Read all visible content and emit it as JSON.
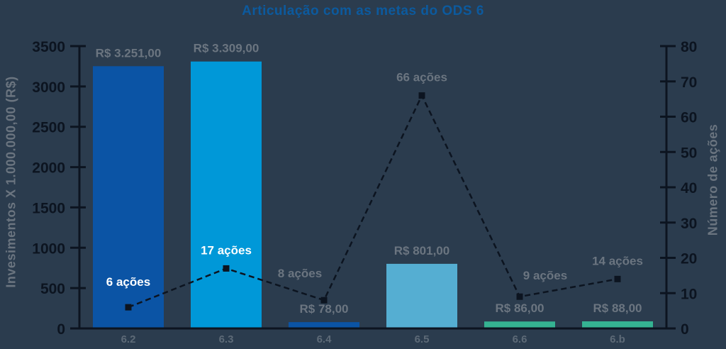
{
  "chart": {
    "title": "Articulação com as metas do ODS 6",
    "left_axis_title": "Invesimentos X 1.000.000,00 (R$)",
    "right_axis_title": "Número de ações"
  },
  "chart_data": {
    "type": "bar+line dual-axis",
    "title": "Articulação com as metas do ODS 6",
    "categories": [
      "6.2",
      "6.3",
      "6.4",
      "6.5",
      "6.6",
      "6.b"
    ],
    "series": [
      {
        "name": "Investimentos",
        "type": "bar",
        "axis": "left",
        "values": [
          3251,
          3309,
          78,
          801,
          86,
          88
        ],
        "labels": [
          "R$ 3.251,00",
          "R$ 3.309,00",
          "R$ 78,00",
          "R$ 801,00",
          "R$ 86,00",
          "R$ 88,00"
        ],
        "bar_colors": [
          "#0b54a5",
          "#0098d8",
          "#0b54a5",
          "#55aed2",
          "#35b392",
          "#35b392"
        ]
      },
      {
        "name": "Número de ações",
        "type": "line",
        "axis": "right",
        "values": [
          6,
          17,
          8,
          66,
          9,
          14
        ],
        "labels": [
          "6 ações",
          "17 ações",
          "8 ações",
          "66 ações",
          "9 ações",
          "14 ações"
        ],
        "label_colors": [
          "#ffffff",
          "#ffffff",
          "#6b7580",
          "#6b7580",
          "#6b7580",
          "#6b7580"
        ],
        "line_color": "#0c1420",
        "line_style": "dashed",
        "marker": "square"
      }
    ],
    "left_axis": {
      "title": "Invesimentos X 1.000.000,00 (R$)",
      "min": 0,
      "max": 3500,
      "step": 500
    },
    "right_axis": {
      "title": "Número de ações",
      "min": 0,
      "max": 80,
      "step": 10
    },
    "legend": "none",
    "grid": false,
    "colors": {
      "background": "#2b3c4e",
      "title": "#0c5a9e",
      "value_label": "#6b7580",
      "tick_label": "#0c1420",
      "x_label": "#5d6a77",
      "axis": "#0c1420"
    }
  }
}
